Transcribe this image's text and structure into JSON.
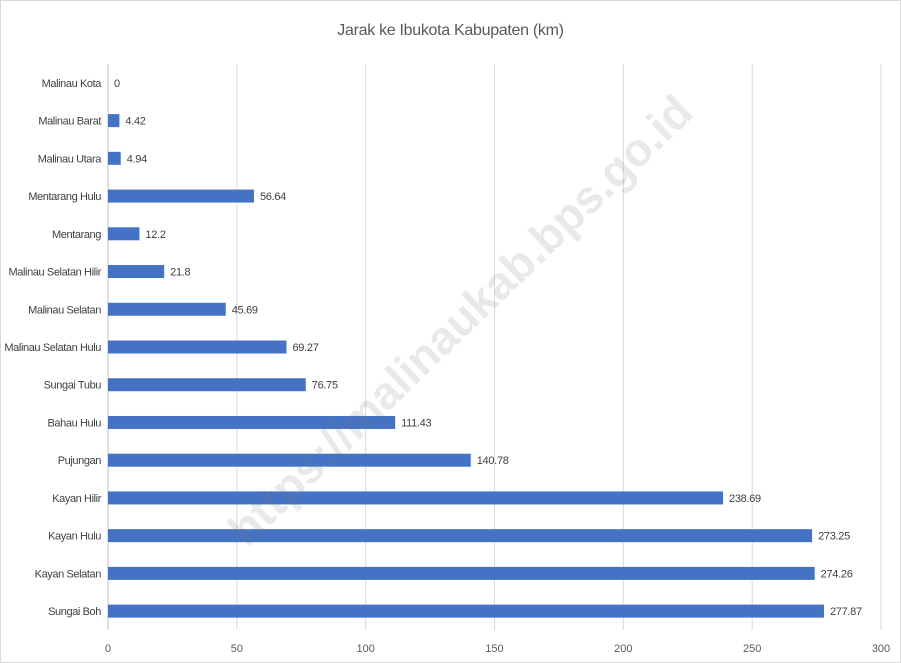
{
  "chart_data": {
    "type": "bar",
    "orientation": "horizontal",
    "title": "Jarak ke Ibukota Kabupaten (km)",
    "categories": [
      "Malinau Kota",
      "Malinau Barat",
      "Malinau Utara",
      "Mentarang Hulu",
      "Mentarang",
      "Malinau Selatan Hilir",
      "Malinau Selatan",
      "Malinau Selatan Hulu",
      "Sungai Tubu",
      "Bahau Hulu",
      "Pujungan",
      "Kayan Hilir",
      "Kayan Hulu",
      "Kayan Selatan",
      "Sungai Boh"
    ],
    "values": [
      0,
      4.42,
      4.94,
      56.64,
      12.2,
      21.8,
      45.69,
      69.27,
      76.75,
      111.43,
      140.78,
      238.69,
      273.25,
      274.26,
      277.87
    ],
    "data_labels": [
      "0",
      "4.42",
      "4.94",
      "56.64",
      "12.2",
      "21.8",
      "45.69",
      "69.27",
      "76.75",
      "111.43",
      "140.78",
      "238.69",
      "273.25",
      "274.26",
      "277.87"
    ],
    "xlim": [
      0,
      300
    ],
    "xticks": [
      0,
      50,
      100,
      150,
      200,
      250,
      300
    ],
    "grid": true,
    "legend": "none",
    "bar_color": "#4472c4",
    "grid_color": "#d9d9d9"
  },
  "watermark": "https://malinaukab.bps.go.id"
}
